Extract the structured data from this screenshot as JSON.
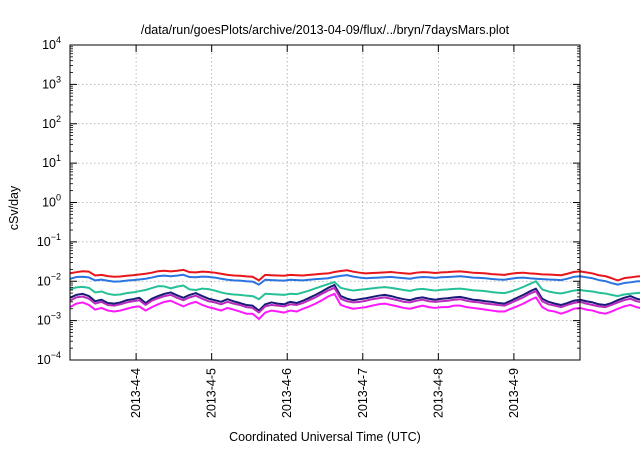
{
  "chart_data": {
    "type": "line",
    "title": "/data/run/goesPlots/archive/2013-04-09/flux/../bryn/7daysMars.plot",
    "xlabel": "Coordinated Universal Time (UTC)",
    "ylabel": "cSv/day",
    "yscale": "log",
    "ylim": [
      0.0001,
      10000
    ],
    "xlim": [
      "2013-04-03T03:00",
      "2013-04-09T21:00"
    ],
    "grid": true,
    "xticks": [
      "2013-4-4",
      "2013-4-5",
      "2013-4-6",
      "2013-4-7",
      "2013-4-8",
      "2013-4-9"
    ],
    "x_start": "2013-04-03T03:00",
    "x_step_hours": 2,
    "series": [
      {
        "color": "#e8161b",
        "values": [
          0.016,
          0.017,
          0.018,
          0.0175,
          0.014,
          0.0145,
          0.0135,
          0.013,
          0.0132,
          0.0138,
          0.0142,
          0.0148,
          0.0155,
          0.0165,
          0.018,
          0.0185,
          0.0178,
          0.0185,
          0.0195,
          0.017,
          0.0168,
          0.0175,
          0.0172,
          0.0165,
          0.0155,
          0.0145,
          0.014,
          0.0138,
          0.0133,
          0.013,
          0.0105,
          0.0145,
          0.0142,
          0.014,
          0.0138,
          0.0145,
          0.0142,
          0.014,
          0.0145,
          0.015,
          0.0155,
          0.0158,
          0.0172,
          0.0182,
          0.019,
          0.0175,
          0.0165,
          0.0158,
          0.0162,
          0.0165,
          0.0168,
          0.0172,
          0.0165,
          0.016,
          0.0155,
          0.0165,
          0.017,
          0.0168,
          0.0162,
          0.0168,
          0.017,
          0.0175,
          0.0178,
          0.0172,
          0.0165,
          0.0162,
          0.0158,
          0.0152,
          0.0148,
          0.0145,
          0.0155,
          0.0162,
          0.0165,
          0.0158,
          0.0155,
          0.015,
          0.0148,
          0.0145,
          0.0142,
          0.0155,
          0.0172,
          0.0178,
          0.0168,
          0.0158,
          0.0142,
          0.0135,
          0.012,
          0.0105,
          0.012,
          0.0125,
          0.0132,
          0.0135,
          0.0132,
          0.0128,
          0.0125,
          0.0122,
          0.0125,
          0.0128,
          0.0126,
          0.0125,
          0.0128,
          0.013,
          0.0128,
          0.013,
          0.0132,
          0.0125,
          0.0122,
          0.0125,
          0.0122,
          0.0118,
          0.012,
          0.0125,
          0.0128,
          0.012,
          0.0118,
          0.0125,
          0.014,
          0.0158,
          0.0178,
          0.0195,
          0.0125,
          0.0122,
          0.0115,
          0.0118,
          0.0125,
          0.013,
          0.0125,
          0.0122,
          0.0118,
          0.0122,
          0.0125,
          0.0118,
          0.0112,
          0.0112,
          0.0118,
          0.0125,
          0.0122,
          0.012,
          0.0118,
          0.0115,
          0.0118,
          0.012,
          0.0118,
          0.0115,
          0.0112,
          0.0115,
          0.0118,
          0.0115,
          0.0115,
          0.0118,
          0.0122,
          0.012,
          0.0118,
          0.0125,
          0.0128,
          0.0122,
          0.0128,
          0.0142,
          0.0138,
          0.0135,
          0.0132,
          0.013,
          0.0128
        ]
      },
      {
        "color": "#2a74e0",
        "values": [
          0.0115,
          0.0128,
          0.013,
          0.0125,
          0.0105,
          0.011,
          0.0103,
          0.0098,
          0.0099,
          0.0104,
          0.0107,
          0.0111,
          0.0116,
          0.0124,
          0.0135,
          0.0139,
          0.0134,
          0.0139,
          0.0146,
          0.0128,
          0.0126,
          0.0131,
          0.0129,
          0.0124,
          0.0116,
          0.0109,
          0.0105,
          0.0104,
          0.01,
          0.0098,
          0.0082,
          0.0109,
          0.0107,
          0.0105,
          0.0104,
          0.0109,
          0.0107,
          0.0105,
          0.0109,
          0.0113,
          0.0116,
          0.0119,
          0.0129,
          0.0137,
          0.0143,
          0.0131,
          0.0124,
          0.0119,
          0.0122,
          0.0124,
          0.0126,
          0.0129,
          0.0124,
          0.012,
          0.0116,
          0.0124,
          0.0128,
          0.0126,
          0.0122,
          0.0126,
          0.0128,
          0.0131,
          0.0134,
          0.0129,
          0.0124,
          0.0122,
          0.0119,
          0.0114,
          0.0111,
          0.0109,
          0.0116,
          0.0122,
          0.0124,
          0.0119,
          0.0116,
          0.0113,
          0.0111,
          0.0109,
          0.0107,
          0.0116,
          0.0129,
          0.0134,
          0.0126,
          0.0119,
          0.0107,
          0.0101,
          0.009,
          0.0082,
          0.009,
          0.0094,
          0.0099,
          0.0101,
          0.0099,
          0.0096,
          0.0094,
          0.0092,
          0.0094,
          0.0096,
          0.0095,
          0.0094,
          0.0096,
          0.0098,
          0.0096,
          0.0098,
          0.0099,
          0.0094,
          0.0092,
          0.0094,
          0.0092,
          0.0089,
          0.009,
          0.0094,
          0.0096,
          0.009,
          0.0089,
          0.0094,
          0.0105,
          0.0119,
          0.0134,
          0.0146,
          0.0094,
          0.0092,
          0.0086,
          0.0089,
          0.0094,
          0.0098,
          0.0094,
          0.0092,
          0.0089,
          0.0092,
          0.0094,
          0.0089,
          0.0084,
          0.0084,
          0.0089,
          0.0094,
          0.0092,
          0.009,
          0.0089,
          0.0086,
          0.0089,
          0.009,
          0.0089,
          0.0086,
          0.0084,
          0.0086,
          0.0089,
          0.0086,
          0.0086,
          0.0089,
          0.0092,
          0.009,
          0.0089,
          0.0094,
          0.0096,
          0.0092,
          0.0096,
          0.0107,
          0.0104,
          0.0101,
          0.0099,
          0.0098,
          0.0096
        ]
      },
      {
        "color": "#26c098",
        "values": [
          0.0062,
          0.007,
          0.0072,
          0.0068,
          0.0052,
          0.0055,
          0.0048,
          0.0045,
          0.0046,
          0.005,
          0.0052,
          0.0056,
          0.006,
          0.0067,
          0.0075,
          0.0074,
          0.0066,
          0.0073,
          0.0078,
          0.0062,
          0.006,
          0.0065,
          0.0063,
          0.0058,
          0.0052,
          0.0048,
          0.0046,
          0.0045,
          0.0043,
          0.0042,
          0.0035,
          0.0048,
          0.0047,
          0.0046,
          0.0045,
          0.0048,
          0.0047,
          0.0052,
          0.0058,
          0.0066,
          0.0075,
          0.0085,
          0.0095,
          0.0068,
          0.0062,
          0.0058,
          0.0061,
          0.0063,
          0.0066,
          0.0069,
          0.0071,
          0.0068,
          0.0064,
          0.006,
          0.0057,
          0.0062,
          0.0064,
          0.0061,
          0.0058,
          0.0061,
          0.0062,
          0.0064,
          0.0065,
          0.0062,
          0.0059,
          0.0058,
          0.0056,
          0.0053,
          0.0051,
          0.005,
          0.0055,
          0.0062,
          0.0072,
          0.0085,
          0.01,
          0.0062,
          0.0055,
          0.0051,
          0.0049,
          0.0053,
          0.0058,
          0.006,
          0.0057,
          0.0055,
          0.0051,
          0.0049,
          0.0045,
          0.0042,
          0.0046,
          0.0048,
          0.005,
          0.0052,
          0.0051,
          0.0049,
          0.0048,
          0.0047,
          0.0048,
          0.0049,
          0.0048,
          0.0048,
          0.0049,
          0.005,
          0.0049,
          0.005,
          0.0051,
          0.0048,
          0.0047,
          0.0048,
          0.0047,
          0.0045,
          0.0046,
          0.0048,
          0.0049,
          0.0046,
          0.0045,
          0.0048,
          0.0052,
          0.0058,
          0.0064,
          0.0068,
          0.0055,
          0.0046,
          0.0043,
          0.0045,
          0.0049,
          0.0052,
          0.0048,
          0.0046,
          0.0044,
          0.0046,
          0.0048,
          0.0045,
          0.0042,
          0.0042,
          0.0045,
          0.0048,
          0.0046,
          0.0045,
          0.0044,
          0.0043,
          0.0045,
          0.0046,
          0.0045,
          0.0043,
          0.0042,
          0.0043,
          0.0045,
          0.0043,
          0.0043,
          0.0045,
          0.0046,
          0.0046,
          0.0045,
          0.0048,
          0.0049,
          0.0046,
          0.0049,
          0.0055,
          0.0054,
          0.0052,
          0.0051,
          0.005,
          0.0049
        ]
      },
      {
        "color": "#1a1a7a",
        "values": [
          0.0038,
          0.0045,
          0.0048,
          0.0042,
          0.0031,
          0.0034,
          0.0028,
          0.0027,
          0.0029,
          0.0033,
          0.0035,
          0.0038,
          0.0028,
          0.0036,
          0.0042,
          0.0048,
          0.0052,
          0.0044,
          0.0038,
          0.0045,
          0.005,
          0.0042,
          0.0036,
          0.0033,
          0.003,
          0.0035,
          0.0031,
          0.0028,
          0.0025,
          0.0024,
          0.0018,
          0.0026,
          0.0029,
          0.0027,
          0.0026,
          0.003,
          0.0028,
          0.0032,
          0.0038,
          0.0045,
          0.0055,
          0.0068,
          0.008,
          0.0042,
          0.0036,
          0.0033,
          0.0035,
          0.0037,
          0.004,
          0.0043,
          0.0045,
          0.0042,
          0.0038,
          0.0035,
          0.0033,
          0.0037,
          0.0039,
          0.0036,
          0.0034,
          0.0036,
          0.0037,
          0.0039,
          0.004,
          0.0037,
          0.0034,
          0.0033,
          0.0031,
          0.003,
          0.0028,
          0.0027,
          0.0032,
          0.0038,
          0.0045,
          0.0055,
          0.0065,
          0.0036,
          0.003,
          0.0027,
          0.0025,
          0.0028,
          0.0032,
          0.0034,
          0.0031,
          0.0029,
          0.0026,
          0.0025,
          0.0028,
          0.0033,
          0.0038,
          0.0042,
          0.0036,
          0.0033,
          0.0034,
          0.0035,
          0.0033,
          0.0031,
          0.0034,
          0.0035,
          0.0033,
          0.003,
          0.0033,
          0.0035,
          0.0033,
          0.0035,
          0.0036,
          0.0033,
          0.003,
          0.0033,
          0.003,
          0.0028,
          0.0031,
          0.0035,
          0.0038,
          0.0033,
          0.0031,
          0.0035,
          0.0042,
          0.0048,
          0.0044,
          0.0038,
          0.0033,
          0.0028,
          0.0025,
          0.0028,
          0.0032,
          0.0036,
          0.0031,
          0.0029,
          0.0026,
          0.0032,
          0.0036,
          0.003,
          0.0026,
          0.0027,
          0.0031,
          0.0034,
          0.0032,
          0.003,
          0.0028,
          0.0027,
          0.0029,
          0.0031,
          0.0029,
          0.0027,
          0.0026,
          0.0028,
          0.003,
          0.0028,
          0.0028,
          0.0031,
          0.0033,
          0.0032,
          0.0031,
          0.0035,
          0.0036,
          0.0033,
          0.0037,
          0.0045,
          0.0042,
          0.0039,
          0.0037,
          0.0035,
          0.0034
        ]
      },
      {
        "color": "#bb2bbb",
        "values": [
          0.0032,
          0.0039,
          0.0041,
          0.0036,
          0.0027,
          0.003,
          0.0025,
          0.0024,
          0.0026,
          0.0029,
          0.0031,
          0.0033,
          0.0025,
          0.0032,
          0.0037,
          0.0042,
          0.0045,
          0.0038,
          0.0033,
          0.0039,
          0.0043,
          0.0036,
          0.0031,
          0.0029,
          0.0026,
          0.003,
          0.0027,
          0.0025,
          0.0022,
          0.0021,
          0.0016,
          0.0023,
          0.0025,
          0.0024,
          0.0023,
          0.0026,
          0.0025,
          0.0028,
          0.0033,
          0.0039,
          0.0048,
          0.0058,
          0.0068,
          0.0036,
          0.0031,
          0.0029,
          0.003,
          0.0032,
          0.0035,
          0.0037,
          0.0039,
          0.0036,
          0.0033,
          0.003,
          0.0029,
          0.0032,
          0.0034,
          0.0031,
          0.003,
          0.0031,
          0.0032,
          0.0034,
          0.0035,
          0.0032,
          0.003,
          0.0029,
          0.0027,
          0.0026,
          0.0025,
          0.0024,
          0.0028,
          0.0033,
          0.0039,
          0.0048,
          0.0056,
          0.0031,
          0.0026,
          0.0024,
          0.0022,
          0.0025,
          0.0028,
          0.003,
          0.0027,
          0.0025,
          0.0023,
          0.0022,
          0.0025,
          0.0029,
          0.0033,
          0.0036,
          0.0031,
          0.0029,
          0.003,
          0.003,
          0.0029,
          0.0027,
          0.003,
          0.003,
          0.0029,
          0.0026,
          0.0029,
          0.003,
          0.0029,
          0.003,
          0.0031,
          0.0029,
          0.0026,
          0.0029,
          0.0026,
          0.0025,
          0.0027,
          0.003,
          0.0033,
          0.0029,
          0.0027,
          0.003,
          0.0036,
          0.0042,
          0.0038,
          0.0033,
          0.0029,
          0.0025,
          0.0022,
          0.0025,
          0.0028,
          0.0031,
          0.0027,
          0.0025,
          0.0023,
          0.0028,
          0.0031,
          0.0026,
          0.0023,
          0.0024,
          0.0027,
          0.003,
          0.0028,
          0.0026,
          0.0025,
          0.0024,
          0.0025,
          0.0027,
          0.0025,
          0.0024,
          0.0023,
          0.0025,
          0.0026,
          0.0025,
          0.0025,
          0.0027,
          0.0029,
          0.0028,
          0.0027,
          0.003,
          0.0031,
          0.0029,
          0.0032,
          0.0039,
          0.0036,
          0.0034,
          0.0032,
          0.003,
          0.003
        ]
      },
      {
        "color": "#ff18ff",
        "values": [
          0.0022,
          0.0027,
          0.0029,
          0.0025,
          0.0019,
          0.0021,
          0.0018,
          0.0017,
          0.0018,
          0.002,
          0.0022,
          0.0023,
          0.0018,
          0.0022,
          0.0026,
          0.003,
          0.0032,
          0.0027,
          0.0023,
          0.0027,
          0.003,
          0.0025,
          0.0022,
          0.002,
          0.0018,
          0.0021,
          0.0019,
          0.0017,
          0.0015,
          0.0015,
          0.0011,
          0.0016,
          0.0018,
          0.0017,
          0.0016,
          0.0018,
          0.0017,
          0.002,
          0.0023,
          0.0027,
          0.0033,
          0.0041,
          0.0048,
          0.0025,
          0.0022,
          0.002,
          0.0021,
          0.0022,
          0.0024,
          0.0026,
          0.0027,
          0.0025,
          0.0023,
          0.0021,
          0.002,
          0.0022,
          0.0024,
          0.0022,
          0.0021,
          0.0022,
          0.0022,
          0.0024,
          0.0024,
          0.0022,
          0.0021,
          0.002,
          0.0019,
          0.0018,
          0.0017,
          0.0017,
          0.002,
          0.0023,
          0.0027,
          0.0033,
          0.0039,
          0.0022,
          0.0018,
          0.0017,
          0.0015,
          0.0017,
          0.002,
          0.0021,
          0.0019,
          0.0018,
          0.0016,
          0.0015,
          0.0017,
          0.002,
          0.0023,
          0.0025,
          0.0022,
          0.002,
          0.0021,
          0.0021,
          0.002,
          0.0019,
          0.0021,
          0.0021,
          0.002,
          0.0018,
          0.002,
          0.0021,
          0.002,
          0.0021,
          0.0022,
          0.002,
          0.0018,
          0.002,
          0.0018,
          0.0017,
          0.0019,
          0.0021,
          0.0023,
          0.002,
          0.0019,
          0.0021,
          0.0025,
          0.0029,
          0.0027,
          0.0023,
          0.002,
          0.0017,
          0.0015,
          0.0017,
          0.002,
          0.0022,
          0.0019,
          0.0018,
          0.0016,
          0.0019,
          0.0022,
          0.0018,
          0.0016,
          0.0017,
          0.0019,
          0.0021,
          0.002,
          0.0018,
          0.0017,
          0.0017,
          0.0018,
          0.0019,
          0.0018,
          0.0017,
          0.0016,
          0.0017,
          0.0018,
          0.0017,
          0.0017,
          0.0019,
          0.002,
          0.0019,
          0.0019,
          0.0021,
          0.0022,
          0.002,
          0.0022,
          0.0027,
          0.0025,
          0.0024,
          0.0022,
          0.0021,
          0.0021
        ]
      }
    ]
  }
}
